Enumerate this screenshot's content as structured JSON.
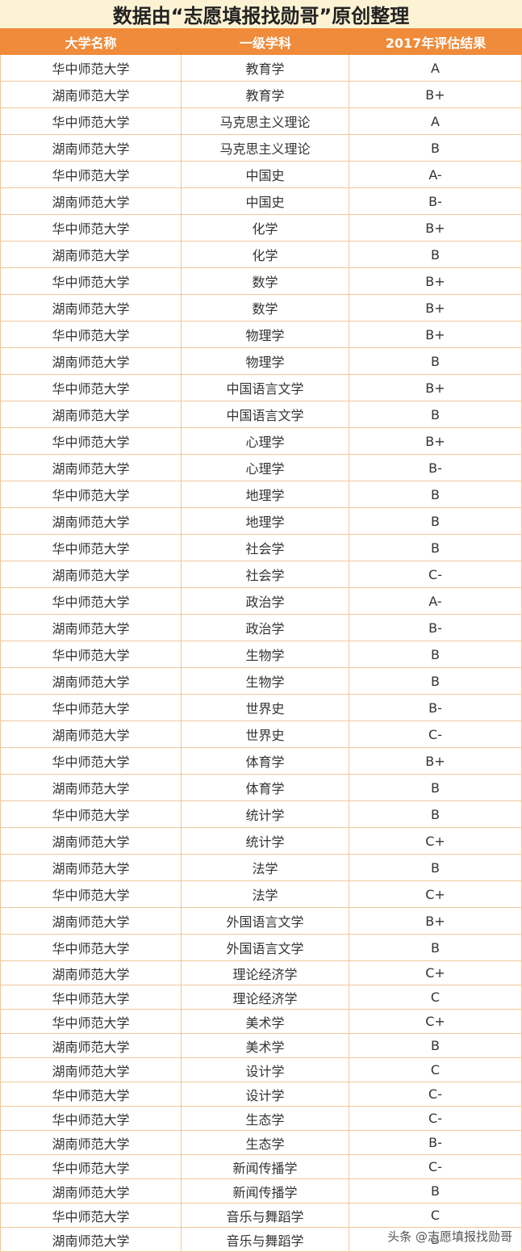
{
  "title": "数据由“志愿填报找勋哥”原创整理",
  "table": {
    "header": [
      "大学名称",
      "一级学科",
      "2017年评估结果"
    ],
    "rows": [
      [
        "华中师范大学",
        "教育学",
        "A"
      ],
      [
        "湖南师范大学",
        "教育学",
        "B+"
      ],
      [
        "华中师范大学",
        "马克思主义理论",
        "A"
      ],
      [
        "湖南师范大学",
        "马克思主义理论",
        "B"
      ],
      [
        "华中师范大学",
        "中国史",
        "A-"
      ],
      [
        "湖南师范大学",
        "中国史",
        "B-"
      ],
      [
        "华中师范大学",
        "化学",
        "B+"
      ],
      [
        "湖南师范大学",
        "化学",
        "B"
      ],
      [
        "华中师范大学",
        "数学",
        "B+"
      ],
      [
        "湖南师范大学",
        "数学",
        "B+"
      ],
      [
        "华中师范大学",
        "物理学",
        "B+"
      ],
      [
        "湖南师范大学",
        "物理学",
        "B"
      ],
      [
        "华中师范大学",
        "中国语言文学",
        "B+"
      ],
      [
        "湖南师范大学",
        "中国语言文学",
        "B"
      ],
      [
        "华中师范大学",
        "心理学",
        "B+"
      ],
      [
        "湖南师范大学",
        "心理学",
        "B-"
      ],
      [
        "华中师范大学",
        "地理学",
        "B"
      ],
      [
        "湖南师范大学",
        "地理学",
        "B"
      ],
      [
        "华中师范大学",
        "社会学",
        "B"
      ],
      [
        "湖南师范大学",
        "社会学",
        "C-"
      ],
      [
        "华中师范大学",
        "政治学",
        "A-"
      ],
      [
        "湖南师范大学",
        "政治学",
        "B-"
      ],
      [
        "华中师范大学",
        "生物学",
        "B"
      ],
      [
        "湖南师范大学",
        "生物学",
        "B"
      ],
      [
        "华中师范大学",
        "世界史",
        "B-"
      ],
      [
        "湖南师范大学",
        "世界史",
        "C-"
      ],
      [
        "华中师范大学",
        "体育学",
        "B+"
      ],
      [
        "湖南师范大学",
        "体育学",
        "B"
      ],
      [
        "华中师范大学",
        "统计学",
        "B"
      ],
      [
        "湖南师范大学",
        "统计学",
        "C+"
      ],
      [
        "湖南师范大学",
        "法学",
        "B"
      ],
      [
        "华中师范大学",
        "法学",
        "C+"
      ],
      [
        "湖南师范大学",
        "外国语言文学",
        "B+"
      ],
      [
        "华中师范大学",
        "外国语言文学",
        "B"
      ],
      [
        "湖南师范大学",
        "理论经济学",
        "C+"
      ],
      [
        "华中师范大学",
        "理论经济学",
        "C"
      ],
      [
        "华中师范大学",
        "美术学",
        "C+"
      ],
      [
        "湖南师范大学",
        "美术学",
        "B"
      ],
      [
        "湖南师范大学",
        "设计学",
        "C"
      ],
      [
        "华中师范大学",
        "设计学",
        "C-"
      ],
      [
        "华中师范大学",
        "生态学",
        "C-"
      ],
      [
        "湖南师范大学",
        "生态学",
        "B-"
      ],
      [
        "华中师范大学",
        "新闻传播学",
        "C-"
      ],
      [
        "湖南师范大学",
        "新闻传播学",
        "B"
      ],
      [
        "华中师范大学",
        "音乐与舞蹈学",
        "C"
      ],
      [
        "湖南师范大学",
        "音乐与舞蹈学",
        "B"
      ]
    ]
  },
  "watermark": "头条 @志愿填报找勋哥"
}
